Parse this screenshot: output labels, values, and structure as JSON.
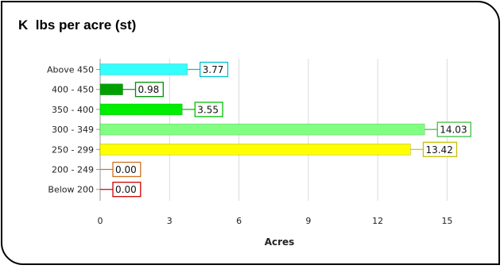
{
  "chart_data": {
    "type": "bar",
    "orientation": "horizontal",
    "title": "K  lbs per acre (st)",
    "xlabel": "Acres",
    "ylabel": "",
    "xlim": [
      0,
      15.5
    ],
    "xticks": [
      0,
      3,
      6,
      9,
      12,
      15
    ],
    "grid": true,
    "legend": "none",
    "categories": [
      "Above 450",
      "400 - 450",
      "350 - 400",
      "300 - 349",
      "250 - 299",
      "200 - 249",
      "Below 200"
    ],
    "values": [
      3.77,
      0.98,
      3.55,
      14.03,
      13.42,
      0.0,
      0.0
    ],
    "labels": [
      "3.77",
      "0.98",
      "3.55",
      "14.03",
      "13.42",
      "0.00",
      "0.00"
    ],
    "colors": [
      "#33ffff",
      "#00a000",
      "#00ee00",
      "#80ff80",
      "#ffff00",
      "#d07020",
      "#cc0000"
    ],
    "label_border_colors": [
      "#00c0d0",
      "#009000",
      "#00c000",
      "#40c040",
      "#c8c000",
      "#d07020",
      "#cc0000"
    ]
  }
}
